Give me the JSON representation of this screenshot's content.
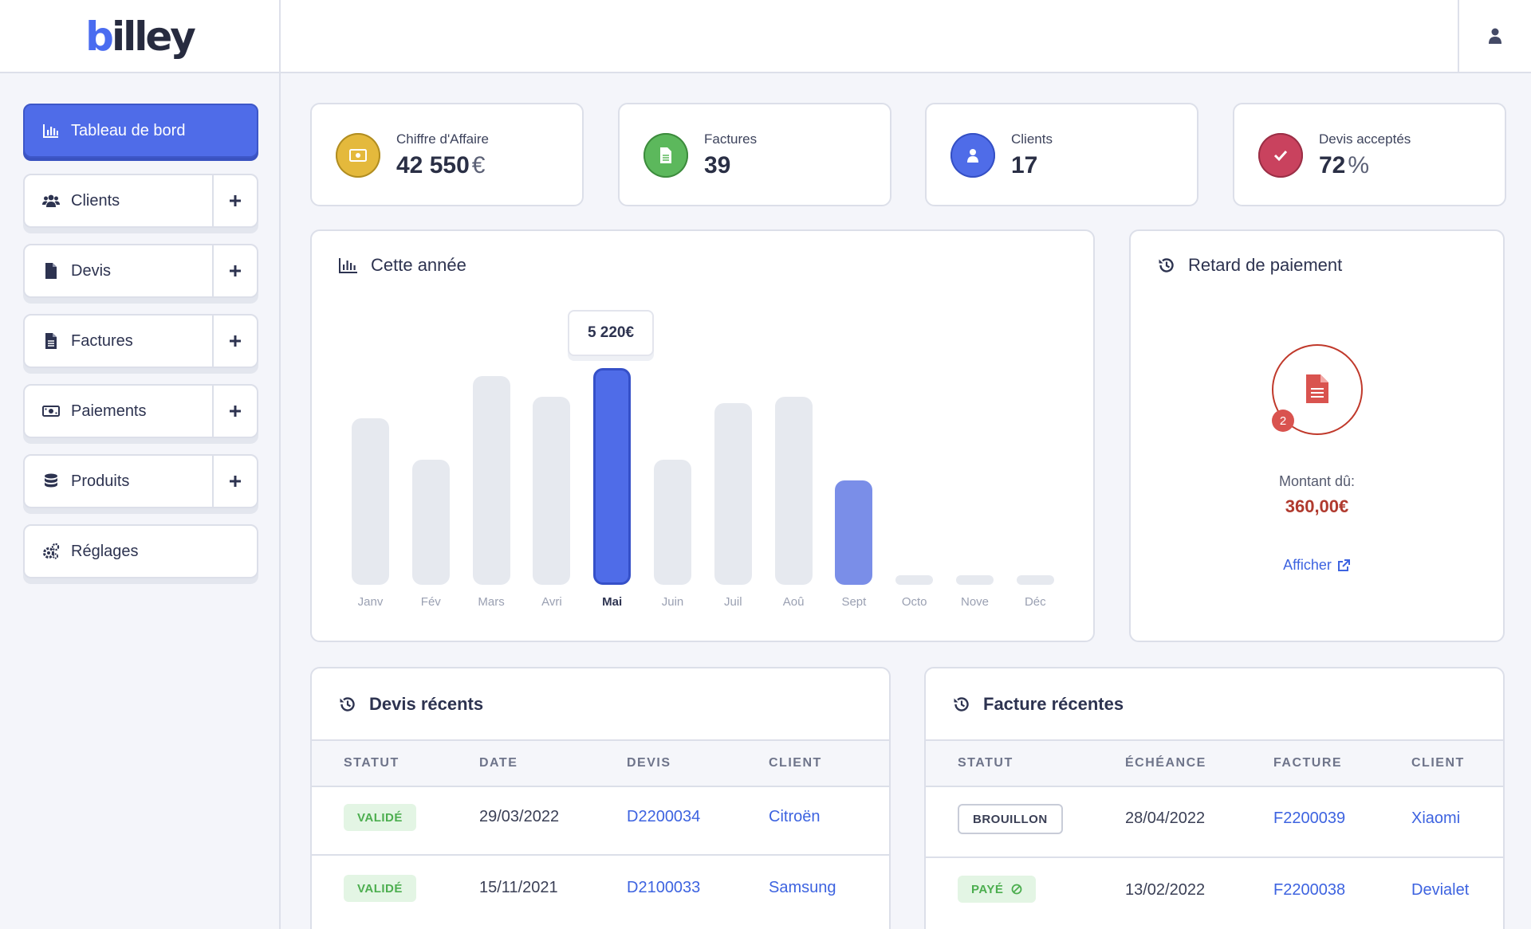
{
  "app": {
    "logo_prefix": "b",
    "logo_rest": "illey"
  },
  "sidebar": {
    "items": [
      {
        "label": "Tableau de bord",
        "icon": "bar-chart-icon",
        "active": true
      },
      {
        "label": "Clients",
        "icon": "users-icon"
      },
      {
        "label": "Devis",
        "icon": "file-icon"
      },
      {
        "label": "Factures",
        "icon": "file-text-icon"
      },
      {
        "label": "Paiements",
        "icon": "money-icon"
      },
      {
        "label": "Produits",
        "icon": "database-icon"
      },
      {
        "label": "Réglages",
        "icon": "gears-icon"
      }
    ]
  },
  "stats": [
    {
      "label": "Chiffre d'Affaire",
      "value": "42 550",
      "unit": "€",
      "color": "#e4b93c"
    },
    {
      "label": "Factures",
      "value": "39",
      "unit": "",
      "color": "#5cb85c"
    },
    {
      "label": "Clients",
      "value": "17",
      "unit": "",
      "color": "#4f6ce8"
    },
    {
      "label": "Devis acceptés",
      "value": "72",
      "unit": "%",
      "color": "#c9425e"
    }
  ],
  "chart_section": {
    "title": "Cette année",
    "tooltip": "5 220€"
  },
  "chart_data": {
    "type": "bar",
    "title": "Cette année",
    "categories": [
      "Janv",
      "Fév",
      "Mars",
      "Avri",
      "Mai",
      "Juin",
      "Juil",
      "Aoû",
      "Sept",
      "Octo",
      "Nove",
      "Déc"
    ],
    "values": [
      4020,
      3020,
      5020,
      4520,
      5220,
      3020,
      4370,
      4520,
      2520,
      0,
      0,
      0
    ],
    "highlighted": "Mai",
    "current": "Sept",
    "ylim": [
      0,
      5220
    ]
  },
  "late_payment": {
    "title": "Retard de paiement",
    "count": "2",
    "amount_label": "Montant dû:",
    "amount": "360,00€",
    "link": "Afficher"
  },
  "recent_quotes": {
    "title": "Devis récents",
    "headers": [
      "STATUT",
      "DATE",
      "DEVIS",
      "CLIENT"
    ],
    "rows": [
      {
        "status": "VALIDÉ",
        "date": "29/03/2022",
        "number": "D2200034",
        "client": "Citroën"
      },
      {
        "status": "VALIDÉ",
        "date": "15/11/2021",
        "number": "D2100033",
        "client": "Samsung"
      }
    ]
  },
  "recent_invoices": {
    "title": "Facture récentes",
    "headers": [
      "STATUT",
      "ÉCHÉANCE",
      "FACTURE",
      "CLIENT"
    ],
    "rows": [
      {
        "status": "BROUILLON",
        "date": "28/04/2022",
        "number": "F2200039",
        "client": "Xiaomi"
      },
      {
        "status": "PAYÉ",
        "date": "13/02/2022",
        "number": "F2200038",
        "client": "Devialet"
      }
    ]
  },
  "colors": {
    "accent": "#4f6ce8",
    "accent_light": "#7a8ee8",
    "bar_idle": "#e6e9ef",
    "danger": "#c0392b",
    "success": "#4cae4f"
  }
}
